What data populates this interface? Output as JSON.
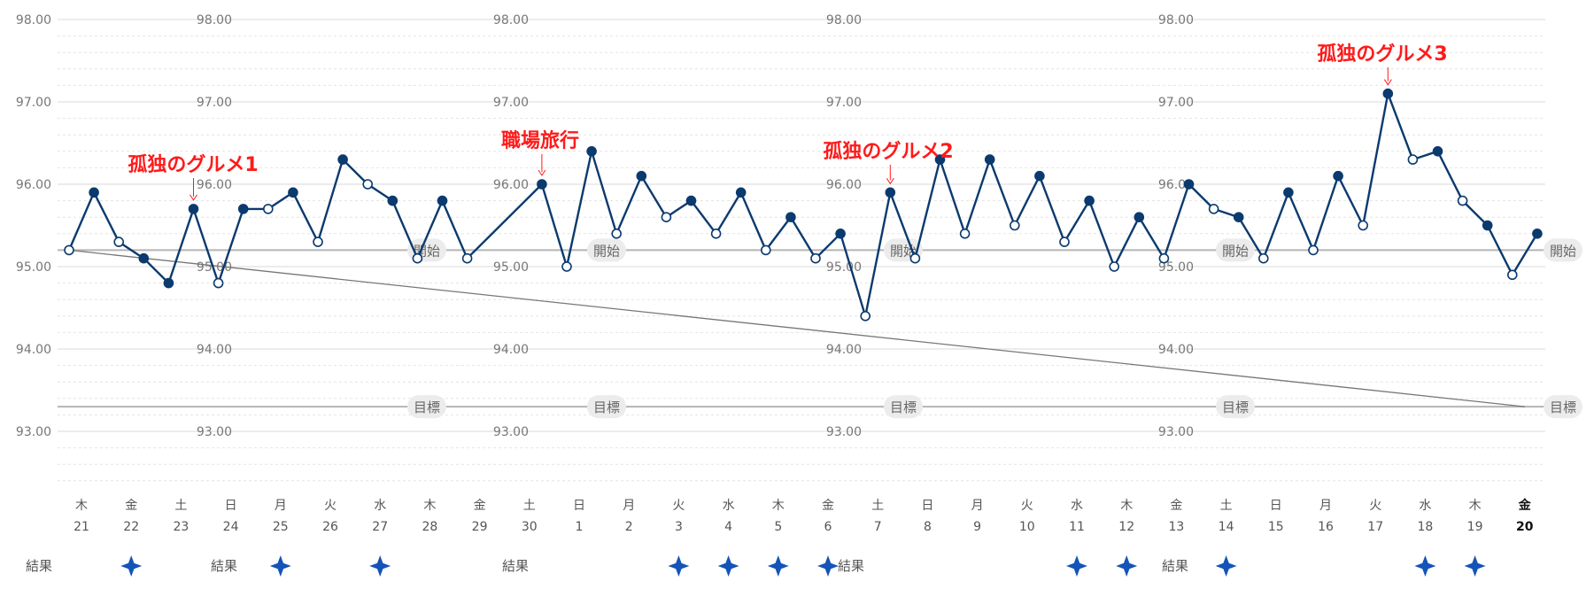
{
  "chart_data": {
    "type": "line",
    "ylim": [
      92.4,
      98.0
    ],
    "y_ticks": [
      "98.00",
      "97.00",
      "96.00",
      "95.00",
      "94.00",
      "93.00"
    ],
    "y_tick_values": [
      98,
      97,
      96,
      95,
      94,
      93
    ],
    "grid": "solid major lines every 1.00, dotted minor lines every 0.20",
    "days": [
      {
        "w": "木",
        "d": "21"
      },
      {
        "w": "金",
        "d": "22"
      },
      {
        "w": "土",
        "d": "23"
      },
      {
        "w": "日",
        "d": "24"
      },
      {
        "w": "月",
        "d": "25"
      },
      {
        "w": "火",
        "d": "26"
      },
      {
        "w": "水",
        "d": "27"
      },
      {
        "w": "木",
        "d": "28"
      },
      {
        "w": "金",
        "d": "29"
      },
      {
        "w": "土",
        "d": "30"
      },
      {
        "w": "日",
        "d": "1"
      },
      {
        "w": "月",
        "d": "2"
      },
      {
        "w": "火",
        "d": "3"
      },
      {
        "w": "水",
        "d": "4"
      },
      {
        "w": "木",
        "d": "5"
      },
      {
        "w": "金",
        "d": "6"
      },
      {
        "w": "土",
        "d": "7"
      },
      {
        "w": "日",
        "d": "8"
      },
      {
        "w": "月",
        "d": "9"
      },
      {
        "w": "火",
        "d": "10"
      },
      {
        "w": "水",
        "d": "11"
      },
      {
        "w": "木",
        "d": "12"
      },
      {
        "w": "金",
        "d": "13"
      },
      {
        "w": "土",
        "d": "14"
      },
      {
        "w": "日",
        "d": "15"
      },
      {
        "w": "月",
        "d": "16"
      },
      {
        "w": "火",
        "d": "17"
      },
      {
        "w": "水",
        "d": "18"
      },
      {
        "w": "木",
        "d": "19"
      },
      {
        "w": "金",
        "d": "20",
        "highlight": true
      }
    ],
    "series": [
      {
        "color": "#0b3a6e",
        "points": [
          {
            "x": 0.0,
            "y": 95.2,
            "filled": false
          },
          {
            "x": 0.5,
            "y": 95.9,
            "filled": true
          },
          {
            "x": 1.0,
            "y": 95.3,
            "filled": false
          },
          {
            "x": 1.5,
            "y": 95.1,
            "filled": true
          },
          {
            "x": 2.0,
            "y": 94.8,
            "filled": true
          },
          {
            "x": 2.5,
            "y": 95.7,
            "filled": true
          },
          {
            "x": 3.0,
            "y": 94.8,
            "filled": false
          },
          {
            "x": 3.5,
            "y": 95.7,
            "filled": true
          },
          {
            "x": 4.0,
            "y": 95.7,
            "filled": false
          },
          {
            "x": 4.5,
            "y": 95.9,
            "filled": true
          },
          {
            "x": 5.0,
            "y": 95.3,
            "filled": false
          },
          {
            "x": 5.5,
            "y": 96.3,
            "filled": true
          },
          {
            "x": 6.0,
            "y": 96.0,
            "filled": false
          },
          {
            "x": 6.5,
            "y": 95.8,
            "filled": true
          },
          {
            "x": 7.0,
            "y": 95.1,
            "filled": false
          },
          {
            "x": 7.5,
            "y": 95.8,
            "filled": true
          },
          {
            "x": 8.0,
            "y": 95.1,
            "filled": false
          },
          {
            "x": 9.5,
            "y": 96.0,
            "filled": true
          },
          {
            "x": 10.0,
            "y": 95.0,
            "filled": false
          },
          {
            "x": 10.5,
            "y": 96.4,
            "filled": true
          },
          {
            "x": 11.0,
            "y": 95.4,
            "filled": false
          },
          {
            "x": 11.5,
            "y": 96.1,
            "filled": true
          },
          {
            "x": 12.0,
            "y": 95.6,
            "filled": false
          },
          {
            "x": 12.5,
            "y": 95.8,
            "filled": true
          },
          {
            "x": 13.0,
            "y": 95.4,
            "filled": false
          },
          {
            "x": 13.5,
            "y": 95.9,
            "filled": true
          },
          {
            "x": 14.0,
            "y": 95.2,
            "filled": false
          },
          {
            "x": 14.5,
            "y": 95.6,
            "filled": true
          },
          {
            "x": 15.0,
            "y": 95.1,
            "filled": false
          },
          {
            "x": 15.5,
            "y": 95.4,
            "filled": true
          },
          {
            "x": 16.0,
            "y": 94.4,
            "filled": false
          },
          {
            "x": 16.5,
            "y": 95.9,
            "filled": true
          },
          {
            "x": 17.0,
            "y": 95.1,
            "filled": false
          },
          {
            "x": 17.5,
            "y": 96.3,
            "filled": true
          },
          {
            "x": 18.0,
            "y": 95.4,
            "filled": false
          },
          {
            "x": 18.5,
            "y": 96.3,
            "filled": true
          },
          {
            "x": 19.0,
            "y": 95.5,
            "filled": false
          },
          {
            "x": 19.5,
            "y": 96.1,
            "filled": true
          },
          {
            "x": 20.0,
            "y": 95.3,
            "filled": false
          },
          {
            "x": 20.5,
            "y": 95.8,
            "filled": true
          },
          {
            "x": 21.0,
            "y": 95.0,
            "filled": false
          },
          {
            "x": 21.5,
            "y": 95.6,
            "filled": true
          },
          {
            "x": 22.0,
            "y": 95.1,
            "filled": false
          },
          {
            "x": 22.5,
            "y": 96.0,
            "filled": true
          },
          {
            "x": 23.0,
            "y": 95.7,
            "filled": false
          },
          {
            "x": 23.5,
            "y": 95.6,
            "filled": true
          },
          {
            "x": 24.0,
            "y": 95.1,
            "filled": false
          },
          {
            "x": 24.5,
            "y": 95.9,
            "filled": true
          },
          {
            "x": 25.0,
            "y": 95.2,
            "filled": false
          },
          {
            "x": 25.5,
            "y": 96.1,
            "filled": true
          },
          {
            "x": 26.0,
            "y": 95.5,
            "filled": false
          },
          {
            "x": 26.5,
            "y": 97.1,
            "filled": true
          },
          {
            "x": 27.0,
            "y": 96.3,
            "filled": false
          },
          {
            "x": 27.5,
            "y": 96.4,
            "filled": true
          },
          {
            "x": 28.0,
            "y": 95.8,
            "filled": false
          },
          {
            "x": 28.5,
            "y": 95.5,
            "filled": true
          },
          {
            "x": 29.0,
            "y": 94.9,
            "filled": false
          },
          {
            "x": 29.5,
            "y": 95.4,
            "filled": true
          }
        ]
      }
    ],
    "reference_lines": [
      {
        "label": "開始",
        "y": 95.2
      },
      {
        "label": "目標",
        "y": 93.3
      }
    ],
    "trend_line": {
      "from": {
        "x": 0.0,
        "y": 95.2
      },
      "to": {
        "x": 29.25,
        "y": 93.3
      }
    },
    "annotations": [
      {
        "text": "孤独のグルメ1",
        "x": 2.5,
        "y": 95.7
      },
      {
        "text": "職場旅行",
        "x": 9.5,
        "y": 96.0
      },
      {
        "text": "孤独のグルメ2",
        "x": 16.5,
        "y": 95.9
      },
      {
        "text": "孤独のグルメ3",
        "x": 26.5,
        "y": 97.1
      }
    ],
    "results_label": "結果",
    "result_marker_days": [
      1,
      4,
      6,
      12,
      13,
      14,
      15,
      20,
      21,
      23,
      27,
      28
    ]
  },
  "colors": {
    "line": "#0b3a6e",
    "marker": "#1454b8",
    "annotation": "#ff1a1a",
    "reference": "#b5b5b5",
    "trend": "#777777"
  }
}
